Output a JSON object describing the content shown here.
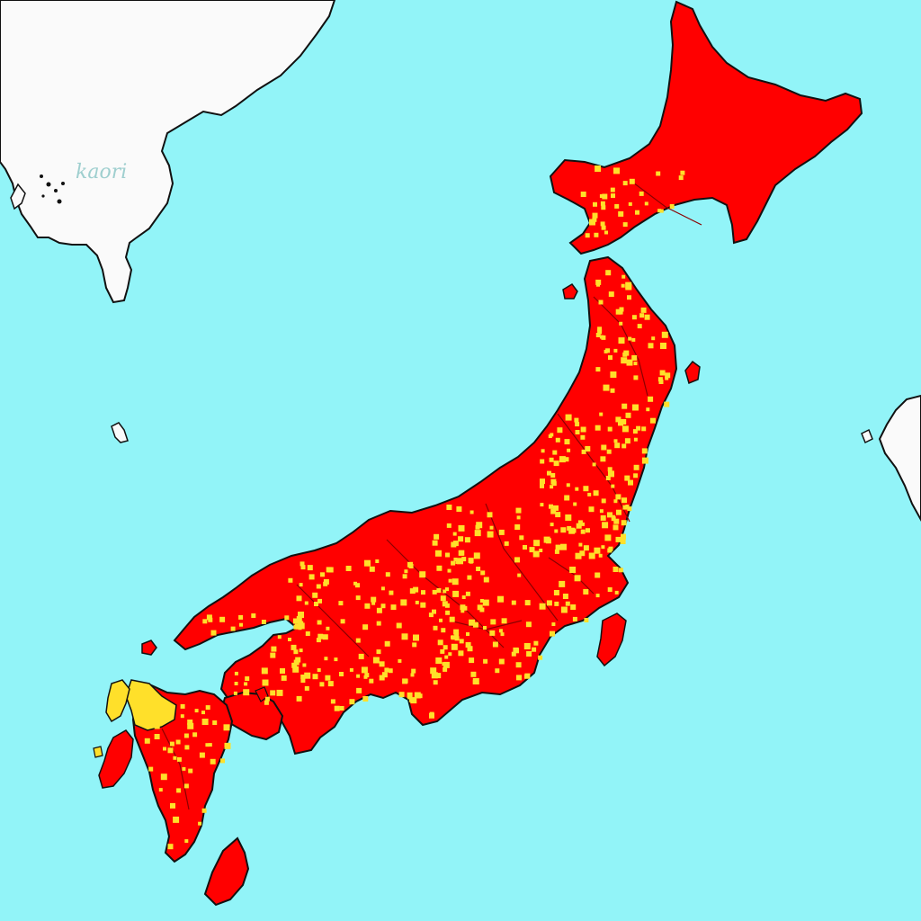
{
  "map": {
    "label": "kaori",
    "colors": {
      "ocean": "#92f4f8",
      "foreign_land": "#fafafa",
      "coastline": "#111111",
      "land_primary": "#ff0000",
      "land_secondary": "#ffe02a",
      "label": "#9fcfcf"
    },
    "legend": []
  }
}
